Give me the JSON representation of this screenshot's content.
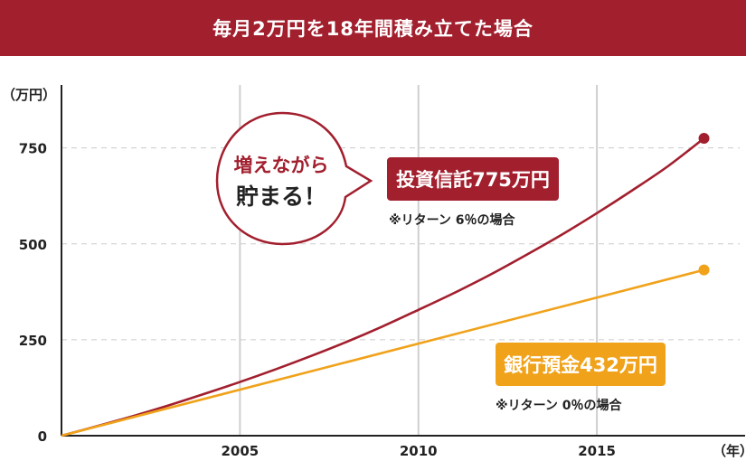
{
  "chart_data": {
    "type": "line",
    "title": "毎月2万円を18年間積み立てた場合",
    "ylabel": "（万円）",
    "xlabel": "（年）",
    "xlim": [
      2000,
      2019
    ],
    "ylim": [
      0,
      900
    ],
    "x_ticks": [
      2005,
      2010,
      2015
    ],
    "y_ticks": [
      0,
      250,
      500,
      750
    ],
    "grid": {
      "vertical": true,
      "horizontal_dashed": true
    },
    "series": [
      {
        "name": "投資信託775万円",
        "color": "#a21f2e",
        "note": "※リターン 6％の場合",
        "x": [
          2000,
          2001,
          2002,
          2003,
          2004,
          2005,
          2006,
          2007,
          2008,
          2009,
          2010,
          2011,
          2012,
          2013,
          2014,
          2015,
          2016,
          2017,
          2018
        ],
        "y": [
          0,
          25,
          51,
          79,
          109,
          140,
          173,
          208,
          245,
          285,
          328,
          372,
          419,
          470,
          523,
          580,
          640,
          703,
          775
        ]
      },
      {
        "name": "銀行預金432万円",
        "color": "#f0a21a",
        "note": "※リターン 0％の場合",
        "x": [
          2000,
          2018
        ],
        "y": [
          0,
          432
        ]
      }
    ],
    "annotation": {
      "line1": "増えながら",
      "line2": "貯まる！"
    }
  }
}
